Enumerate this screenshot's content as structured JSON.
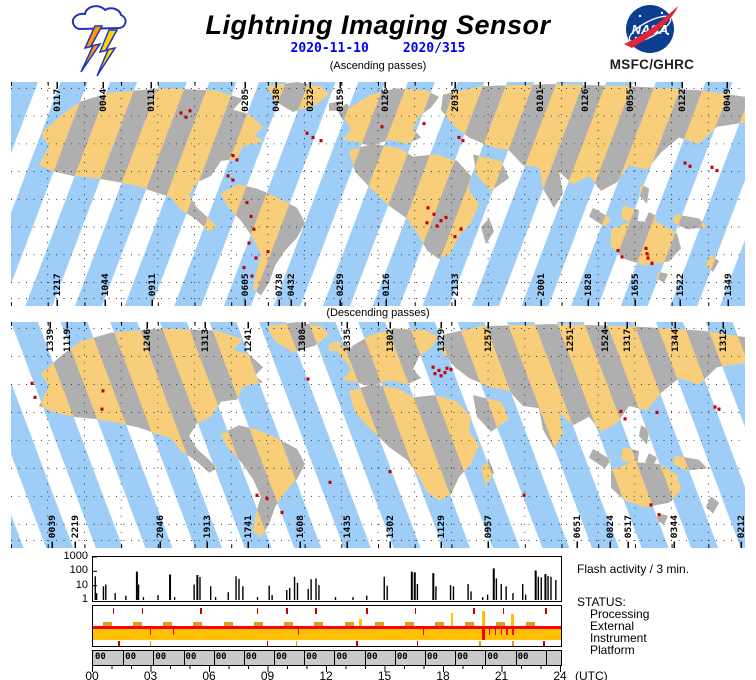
{
  "header": {
    "title": "Lightning Imaging Sensor",
    "date_iso": "2020-11-10",
    "date_doy": "2020/315",
    "passes_ascending": "(Ascending passes)",
    "passes_descending": "(Descending passes)",
    "org": "MSFC/GHRC",
    "nasa_text": "NASA"
  },
  "colors": {
    "swath_blue": "#9ECDF8",
    "land_tan": "#F8CE7B",
    "land_gray": "#AFAFAF",
    "flash_red": "#C60000",
    "date_blue": "#0000F5",
    "status_band_orange": "#FFC103",
    "status_dash_orange": "#DF9B22",
    "status_line_red": "#FF0000",
    "orbit_band_gray": "#C9C9C9"
  },
  "map_ascending": {
    "name": "Ascending passes world swath map",
    "top_labels": [
      [
        "0117",
        46
      ],
      [
        "0044",
        92
      ],
      [
        "0111",
        140
      ],
      [
        "0205",
        234
      ],
      [
        "0438",
        265
      ],
      [
        "0232",
        299
      ],
      [
        "0159",
        329
      ],
      [
        "0126",
        374
      ],
      [
        "2033",
        444
      ],
      [
        "0101",
        529
      ],
      [
        "0126",
        574
      ],
      [
        "0055",
        619
      ],
      [
        "0122",
        671
      ],
      [
        "0049",
        716
      ]
    ],
    "bottom_labels": [
      [
        "1217",
        46
      ],
      [
        "1044",
        94
      ],
      [
        "0911",
        141
      ],
      [
        "0605",
        234
      ],
      [
        "0738",
        268
      ],
      [
        "0432",
        280
      ],
      [
        "0259",
        329
      ],
      [
        "0126",
        375
      ],
      [
        "2133",
        444
      ],
      [
        "2001",
        530
      ],
      [
        "1828",
        577
      ],
      [
        "1655",
        624
      ],
      [
        "1522",
        669
      ],
      [
        "1349",
        717
      ]
    ],
    "flash_dots": [
      [
        170,
        29
      ],
      [
        175,
        33
      ],
      [
        179,
        27
      ],
      [
        296,
        48
      ],
      [
        302,
        52
      ],
      [
        310,
        55
      ],
      [
        222,
        69
      ],
      [
        226,
        73
      ],
      [
        217,
        88
      ],
      [
        222,
        92
      ],
      [
        236,
        113
      ],
      [
        240,
        126
      ],
      [
        243,
        138
      ],
      [
        238,
        151
      ],
      [
        245,
        165
      ],
      [
        233,
        174
      ],
      [
        241,
        182
      ],
      [
        257,
        159
      ],
      [
        417,
        118
      ],
      [
        423,
        124
      ],
      [
        430,
        130
      ],
      [
        416,
        132
      ],
      [
        426,
        135
      ],
      [
        435,
        127
      ],
      [
        444,
        145
      ],
      [
        450,
        138
      ],
      [
        448,
        52
      ],
      [
        452,
        55
      ],
      [
        371,
        42
      ],
      [
        413,
        39
      ],
      [
        674,
        76
      ],
      [
        679,
        79
      ],
      [
        701,
        80
      ],
      [
        706,
        83
      ],
      [
        607,
        158
      ],
      [
        611,
        164
      ],
      [
        635,
        156
      ],
      [
        636,
        161
      ],
      [
        637,
        165
      ],
      [
        641,
        170
      ]
    ]
  },
  "map_descending": {
    "name": "Descending passes world swath map",
    "top_labels": [
      [
        "1339",
        39
      ],
      [
        "1119",
        56
      ],
      [
        "1246",
        136
      ],
      [
        "1313",
        194
      ],
      [
        "1241",
        237
      ],
      [
        "1308",
        291
      ],
      [
        "1335",
        336
      ],
      [
        "1302",
        379
      ],
      [
        "1329",
        430
      ],
      [
        "1257",
        477
      ],
      [
        "1251",
        559
      ],
      [
        "1524",
        594
      ],
      [
        "1317",
        616
      ],
      [
        "1344",
        664
      ],
      [
        "1312",
        712
      ]
    ],
    "bottom_labels": [
      [
        "0039",
        41
      ],
      [
        "2219",
        64
      ],
      [
        "2046",
        149
      ],
      [
        "1913",
        196
      ],
      [
        "1741",
        237
      ],
      [
        "1608",
        289
      ],
      [
        "1435",
        336
      ],
      [
        "1302",
        379
      ],
      [
        "1129",
        430
      ],
      [
        "0957",
        477
      ],
      [
        "0651",
        566
      ],
      [
        "0824",
        599
      ],
      [
        "0517",
        617
      ],
      [
        "0344",
        663
      ],
      [
        "0212",
        730
      ]
    ],
    "flash_dots": [
      [
        21,
        57
      ],
      [
        24,
        70
      ],
      [
        91,
        81
      ],
      [
        92,
        64
      ],
      [
        297,
        53
      ],
      [
        422,
        42
      ],
      [
        428,
        45
      ],
      [
        434,
        47
      ],
      [
        440,
        44
      ],
      [
        430,
        50
      ],
      [
        424,
        48
      ],
      [
        436,
        43
      ],
      [
        610,
        83
      ],
      [
        614,
        90
      ],
      [
        646,
        84
      ],
      [
        704,
        79
      ],
      [
        708,
        81
      ],
      [
        246,
        161
      ],
      [
        256,
        164
      ],
      [
        271,
        177
      ],
      [
        513,
        161
      ],
      [
        640,
        170
      ],
      [
        648,
        179
      ],
      [
        379,
        139
      ],
      [
        319,
        149
      ]
    ]
  },
  "chart_data": [
    {
      "type": "bar",
      "title": "Flash activity / 3 min.",
      "xlabel_suffix": "(UTC)",
      "xticks": [
        "00",
        "03",
        "06",
        "09",
        "12",
        "15",
        "18",
        "21",
        "24"
      ],
      "ytick_labels": [
        "1000",
        "100",
        "10",
        "1"
      ],
      "yticks": [
        1,
        10,
        100,
        1000
      ],
      "ylog": true,
      "xlim_hours": [
        0,
        24
      ],
      "points_hour_value": [
        [
          0.08,
          45
        ],
        [
          0.15,
          3
        ],
        [
          0.5,
          9
        ],
        [
          0.62,
          12
        ],
        [
          1.1,
          3
        ],
        [
          1.65,
          2
        ],
        [
          2.2,
          95
        ],
        [
          2.3,
          12
        ],
        [
          2.55,
          1.6
        ],
        [
          3.3,
          2.2
        ],
        [
          3.9,
          60
        ],
        [
          4.15,
          1.6
        ],
        [
          5.15,
          12
        ],
        [
          5.3,
          55
        ],
        [
          5.45,
          40
        ],
        [
          6.0,
          9
        ],
        [
          6.25,
          1.6
        ],
        [
          6.9,
          3.5
        ],
        [
          7.3,
          45
        ],
        [
          7.45,
          30
        ],
        [
          7.65,
          9
        ],
        [
          8.4,
          1.6
        ],
        [
          9.0,
          10
        ],
        [
          9.15,
          2.2
        ],
        [
          9.9,
          5
        ],
        [
          10.05,
          7
        ],
        [
          10.3,
          42
        ],
        [
          10.45,
          16
        ],
        [
          11.0,
          6
        ],
        [
          11.15,
          28
        ],
        [
          11.4,
          32
        ],
        [
          11.55,
          11
        ],
        [
          12.4,
          1.6
        ],
        [
          13.3,
          1.6
        ],
        [
          14.0,
          2
        ],
        [
          14.9,
          42
        ],
        [
          15.05,
          10
        ],
        [
          16.3,
          95
        ],
        [
          16.45,
          85
        ],
        [
          16.6,
          13
        ],
        [
          17.4,
          75
        ],
        [
          17.55,
          9
        ],
        [
          18.3,
          11
        ],
        [
          18.45,
          9
        ],
        [
          19.2,
          13
        ],
        [
          19.35,
          4
        ],
        [
          19.95,
          1.6
        ],
        [
          20.2,
          2.4
        ],
        [
          20.5,
          160
        ],
        [
          20.65,
          32
        ],
        [
          20.9,
          13
        ],
        [
          21.15,
          9
        ],
        [
          21.5,
          3
        ],
        [
          22.0,
          13
        ],
        [
          22.15,
          2.4
        ],
        [
          22.65,
          115
        ],
        [
          22.8,
          42
        ],
        [
          22.95,
          38
        ],
        [
          23.15,
          65
        ],
        [
          23.3,
          48
        ],
        [
          23.45,
          42
        ],
        [
          23.7,
          25
        ]
      ]
    },
    {
      "type": "status-timeline",
      "title": "STATUS:",
      "rows": [
        "Processing",
        "External",
        "Instrument",
        "Platform"
      ],
      "processing_tick_hours": [
        1.0,
        2.5,
        5.5,
        8.4,
        9.9,
        11.4,
        14.0,
        16.5,
        19.5,
        21.0,
        23.2
      ],
      "external_dash_hours": [
        0.5,
        2.05,
        3.6,
        5.15,
        6.7,
        8.25,
        9.8,
        11.35,
        12.9,
        14.45,
        16.0,
        17.55,
        19.1,
        20.65,
        22.2
      ],
      "external_spikes": [
        [
          13.65,
          7
        ],
        [
          18.35,
          13
        ],
        [
          19.95,
          15
        ],
        [
          21.45,
          12
        ]
      ],
      "instrument_mark_hours": [
        2.9,
        4.1,
        10.5,
        16.9,
        20.3,
        20.6,
        20.9,
        21.2,
        21.5
      ],
      "instrument_notch_hour": 19.93,
      "platform_ticks": [
        [
          1.3,
          "red"
        ],
        [
          2.9,
          "orange"
        ],
        [
          8.9,
          "red"
        ],
        [
          10.4,
          "orange"
        ],
        [
          13.5,
          "red"
        ],
        [
          16.6,
          "red"
        ],
        [
          19.8,
          "orange"
        ],
        [
          21.5,
          "orange"
        ],
        [
          23.1,
          "red"
        ]
      ],
      "orbit_cells": {
        "label": "00",
        "count": 15,
        "step_hours": 1.548
      }
    }
  ]
}
